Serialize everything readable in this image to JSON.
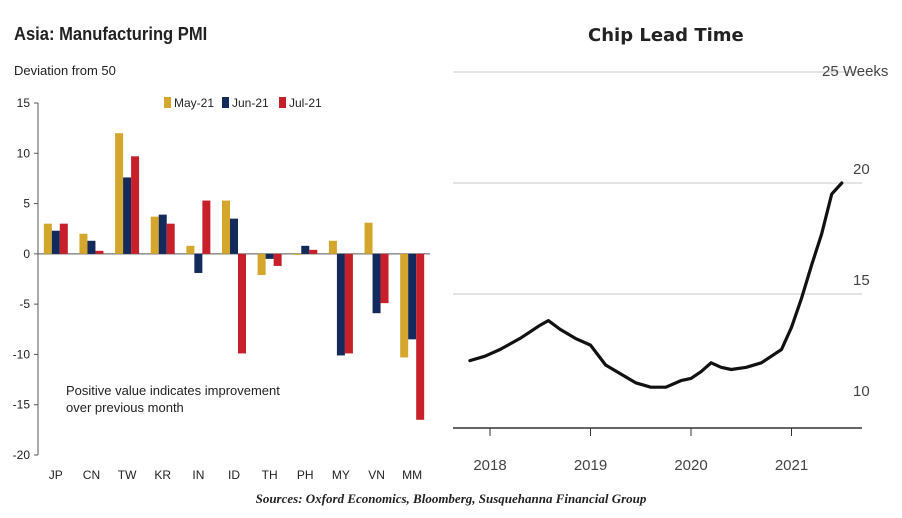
{
  "left_chart": {
    "title": "Asia: Manufacturing PMI",
    "subtitle": "Deviation from 50",
    "note": "Positive value indicates improvement over previous month",
    "legend": [
      "May-21",
      "Jun-21",
      "Jul-21"
    ],
    "colors": [
      "#d4a72c",
      "#142a5c",
      "#c8202a"
    ]
  },
  "right_chart": {
    "title": "Chip Lead Time",
    "unit_label": "25 Weeks",
    "y_ticks": [
      "20",
      "15",
      "10"
    ],
    "x_ticks": [
      "2018",
      "2019",
      "2020",
      "2021"
    ],
    "line_color": "#111111"
  },
  "sources": "Sources: Oxford Economics, Bloomberg, Susquehanna Financial Group",
  "chart_data": [
    {
      "type": "bar",
      "title": "Asia: Manufacturing PMI",
      "ylabel": "Deviation from 50",
      "categories": [
        "JP",
        "CN",
        "TW",
        "KR",
        "IN",
        "ID",
        "TH",
        "PH",
        "MY",
        "VN",
        "MM"
      ],
      "series": [
        {
          "name": "May-21",
          "values": [
            3.0,
            2.0,
            12.0,
            3.7,
            0.8,
            5.3,
            -2.1,
            -0.1,
            1.3,
            3.1,
            -10.3
          ]
        },
        {
          "name": "Jun-21",
          "values": [
            2.3,
            1.3,
            7.6,
            3.9,
            -1.9,
            3.5,
            -0.5,
            0.8,
            -10.1,
            -5.9,
            -8.5
          ]
        },
        {
          "name": "Jul-21",
          "values": [
            3.0,
            0.3,
            9.7,
            3.0,
            5.3,
            -9.9,
            -1.2,
            0.4,
            -9.9,
            -4.9,
            -16.5
          ]
        }
      ],
      "y_ticks": [
        15,
        10,
        5,
        0,
        -5,
        -10,
        -15,
        -20
      ],
      "ylim": [
        -20,
        15
      ],
      "legend_position": "top-right",
      "grid": false
    },
    {
      "type": "line",
      "title": "Chip Lead Time",
      "ylabel": "Weeks",
      "x": [
        2017.8,
        2017.95,
        2018.1,
        2018.3,
        2018.5,
        2018.58,
        2018.7,
        2018.85,
        2019.0,
        2019.15,
        2019.3,
        2019.45,
        2019.6,
        2019.75,
        2019.9,
        2020.0,
        2020.1,
        2020.2,
        2020.3,
        2020.4,
        2020.55,
        2020.7,
        2020.8,
        2020.9,
        2021.0,
        2021.1,
        2021.2,
        2021.3,
        2021.4,
        2021.5
      ],
      "values": [
        12.0,
        12.2,
        12.5,
        13.0,
        13.6,
        13.8,
        13.4,
        13.0,
        12.7,
        11.8,
        11.4,
        11.0,
        10.8,
        10.8,
        11.1,
        11.2,
        11.5,
        11.9,
        11.7,
        11.6,
        11.7,
        11.9,
        12.2,
        12.5,
        13.5,
        14.8,
        16.3,
        17.7,
        19.5,
        20.0
      ],
      "x_ticks": [
        2018,
        2019,
        2020,
        2021
      ],
      "y_ticks": [
        10,
        15,
        20,
        25
      ],
      "ylim": [
        9.4,
        25
      ],
      "grid": true
    }
  ]
}
